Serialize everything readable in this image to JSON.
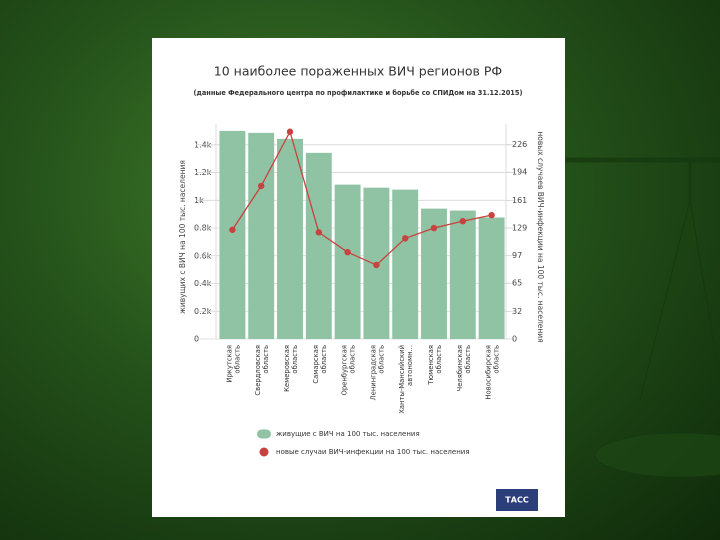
{
  "chart_data": {
    "type": "bar",
    "title": "10 наиболее пораженных ВИЧ регионов РФ",
    "subtitle": "(данные Федерального центра по профилактике и борьбе со СПИДом на 31.12.2015)",
    "ylabel": "живущих с ВИЧ на 100 тыс. населения",
    "y2label": "новых случаев ВИЧ-инфекции на 100 тыс. населения",
    "categories": [
      "Иркутская область",
      "Свердловская область",
      "Кемеровская область",
      "Самарская область",
      "Оренбургская область",
      "Ленинградская область",
      "Ханты-Мансийский автономн...",
      "Тюменская область",
      "Челябинская область",
      "Новосибирская область"
    ],
    "series": [
      {
        "name": "живущие с ВИЧ на 100 тыс. населения",
        "type": "bar",
        "color": "#8fc3a3",
        "values": [
          1500,
          1486,
          1443,
          1342,
          1113,
          1091,
          1077,
          940,
          926,
          876
        ]
      },
      {
        "name": "новые случаи ВИЧ-инфекции на 100 тыс. населения",
        "type": "line",
        "axis": "y2",
        "color": "#c8423f",
        "values": [
          127,
          178,
          241,
          124,
          101,
          86,
          117,
          129,
          137,
          144
        ]
      }
    ],
    "ylim": [
      0,
      1550
    ],
    "yticks": [
      0,
      {
        "value": 200,
        "label": "0.2k"
      },
      {
        "value": 400,
        "label": "0.4k"
      },
      {
        "value": 600,
        "label": "0.6k"
      },
      {
        "value": 800,
        "label": "0.8k"
      },
      {
        "value": 1000,
        "label": "1k"
      },
      {
        "value": 1200,
        "label": "1.2k"
      },
      {
        "value": 1400,
        "label": "1.4k"
      }
    ],
    "y2lim": [
      0,
      250
    ],
    "y2ticks": [
      0,
      32,
      65,
      97,
      129,
      161,
      194,
      226
    ],
    "grid": true,
    "logo": "ТАСС"
  }
}
